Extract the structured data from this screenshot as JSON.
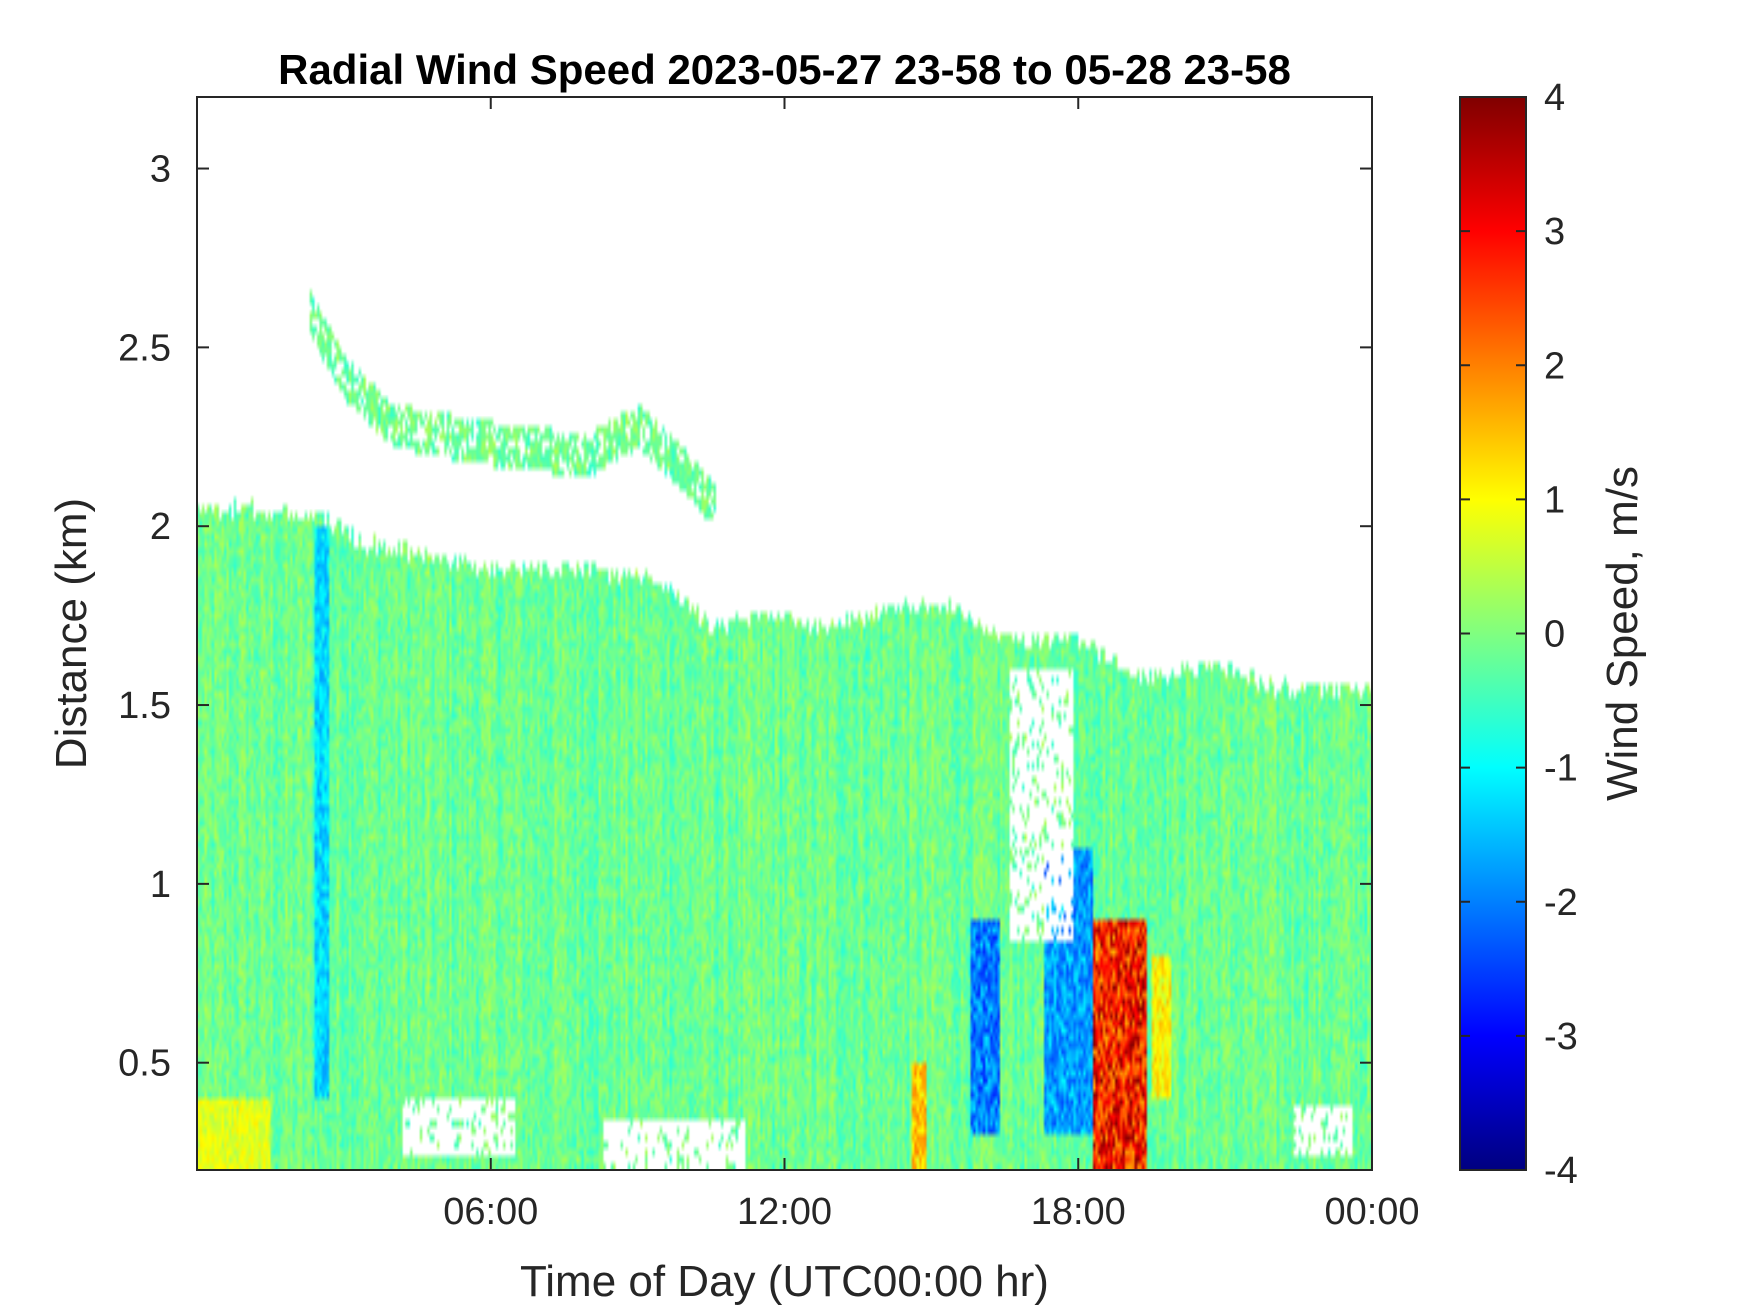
{
  "chart_data": {
    "type": "heatmap",
    "title": "Radial Wind Speed 2023-05-27 23-58 to 05-28 23-58",
    "xlabel": "Time of Day (UTC00:00 hr)",
    "ylabel": "Distance (km)",
    "colorbar_label": "Wind Speed, m/s",
    "x_unit": "hours",
    "xlim": [
      0,
      24
    ],
    "ylim": [
      0.2,
      3.2
    ],
    "clim": [
      -4,
      4
    ],
    "colormap": "jet",
    "x_ticks": [
      {
        "value": 6,
        "label": "06:00"
      },
      {
        "value": 12,
        "label": "12:00"
      },
      {
        "value": 18,
        "label": "18:00"
      },
      {
        "value": 24,
        "label": "00:00"
      }
    ],
    "y_ticks": [
      {
        "value": 0.5,
        "label": "0.5"
      },
      {
        "value": 1,
        "label": "1"
      },
      {
        "value": 1.5,
        "label": "1.5"
      },
      {
        "value": 2,
        "label": "2"
      },
      {
        "value": 2.5,
        "label": "2.5"
      },
      {
        "value": 3,
        "label": "3"
      }
    ],
    "colorbar_ticks": [
      {
        "value": 4,
        "label": "4"
      },
      {
        "value": 3,
        "label": "3"
      },
      {
        "value": 2,
        "label": "2"
      },
      {
        "value": 1,
        "label": "1"
      },
      {
        "value": 0,
        "label": "0"
      },
      {
        "value": -1,
        "label": "-1"
      },
      {
        "value": -2,
        "label": "-2"
      },
      {
        "value": -3,
        "label": "-3"
      },
      {
        "value": -4,
        "label": "-4"
      }
    ],
    "data_top_km": [
      [
        0,
        2.05
      ],
      [
        1,
        2.05
      ],
      [
        2.5,
        2.03
      ],
      [
        3.5,
        1.95
      ],
      [
        6,
        1.88
      ],
      [
        8,
        1.88
      ],
      [
        9.5,
        1.85
      ],
      [
        10.5,
        1.72
      ],
      [
        11.5,
        1.75
      ],
      [
        13,
        1.72
      ],
      [
        14.5,
        1.78
      ],
      [
        15.5,
        1.78
      ],
      [
        16,
        1.72
      ],
      [
        17,
        1.68
      ],
      [
        18,
        1.68
      ],
      [
        18.8,
        1.62
      ],
      [
        19.3,
        1.58
      ],
      [
        21,
        1.6
      ],
      [
        22,
        1.55
      ],
      [
        24,
        1.55
      ]
    ],
    "elevated_layer": [
      [
        2.3,
        2.6
      ],
      [
        3,
        2.42
      ],
      [
        4,
        2.28
      ],
      [
        5.2,
        2.25
      ],
      [
        6.5,
        2.22
      ],
      [
        8,
        2.2
      ],
      [
        9,
        2.28
      ],
      [
        9.8,
        2.18
      ],
      [
        10.6,
        2.05
      ]
    ],
    "features": [
      {
        "x": [
          18.3,
          19.4
        ],
        "y": [
          0.2,
          0.9
        ],
        "value": 3.6
      },
      {
        "x": [
          17.3,
          18.3
        ],
        "y": [
          0.3,
          1.1
        ],
        "value": -2.2
      },
      {
        "x": [
          15.8,
          16.4
        ],
        "y": [
          0.3,
          0.9
        ],
        "value": -2.5
      },
      {
        "x": [
          14.6,
          14.9
        ],
        "y": [
          0.2,
          0.5
        ],
        "value": 1.8
      },
      {
        "x": [
          19.5,
          19.9
        ],
        "y": [
          0.4,
          0.8
        ],
        "value": 1.4
      },
      {
        "x": [
          2.4,
          2.7
        ],
        "y": [
          0.4,
          2.0
        ],
        "value": -1.6
      },
      {
        "x": [
          0,
          1.5
        ],
        "y": [
          0.2,
          0.4
        ],
        "value": 1.0
      }
    ],
    "gaps": [
      {
        "x": [
          8.3,
          11.2
        ],
        "y": [
          0.2,
          0.35
        ]
      },
      {
        "x": [
          4.2,
          6.5
        ],
        "y": [
          0.25,
          0.4
        ]
      },
      {
        "x": [
          16.6,
          17.9
        ],
        "y": [
          0.85,
          1.6
        ]
      },
      {
        "x": [
          22.4,
          23.6
        ],
        "y": [
          0.25,
          0.38
        ]
      }
    ]
  }
}
